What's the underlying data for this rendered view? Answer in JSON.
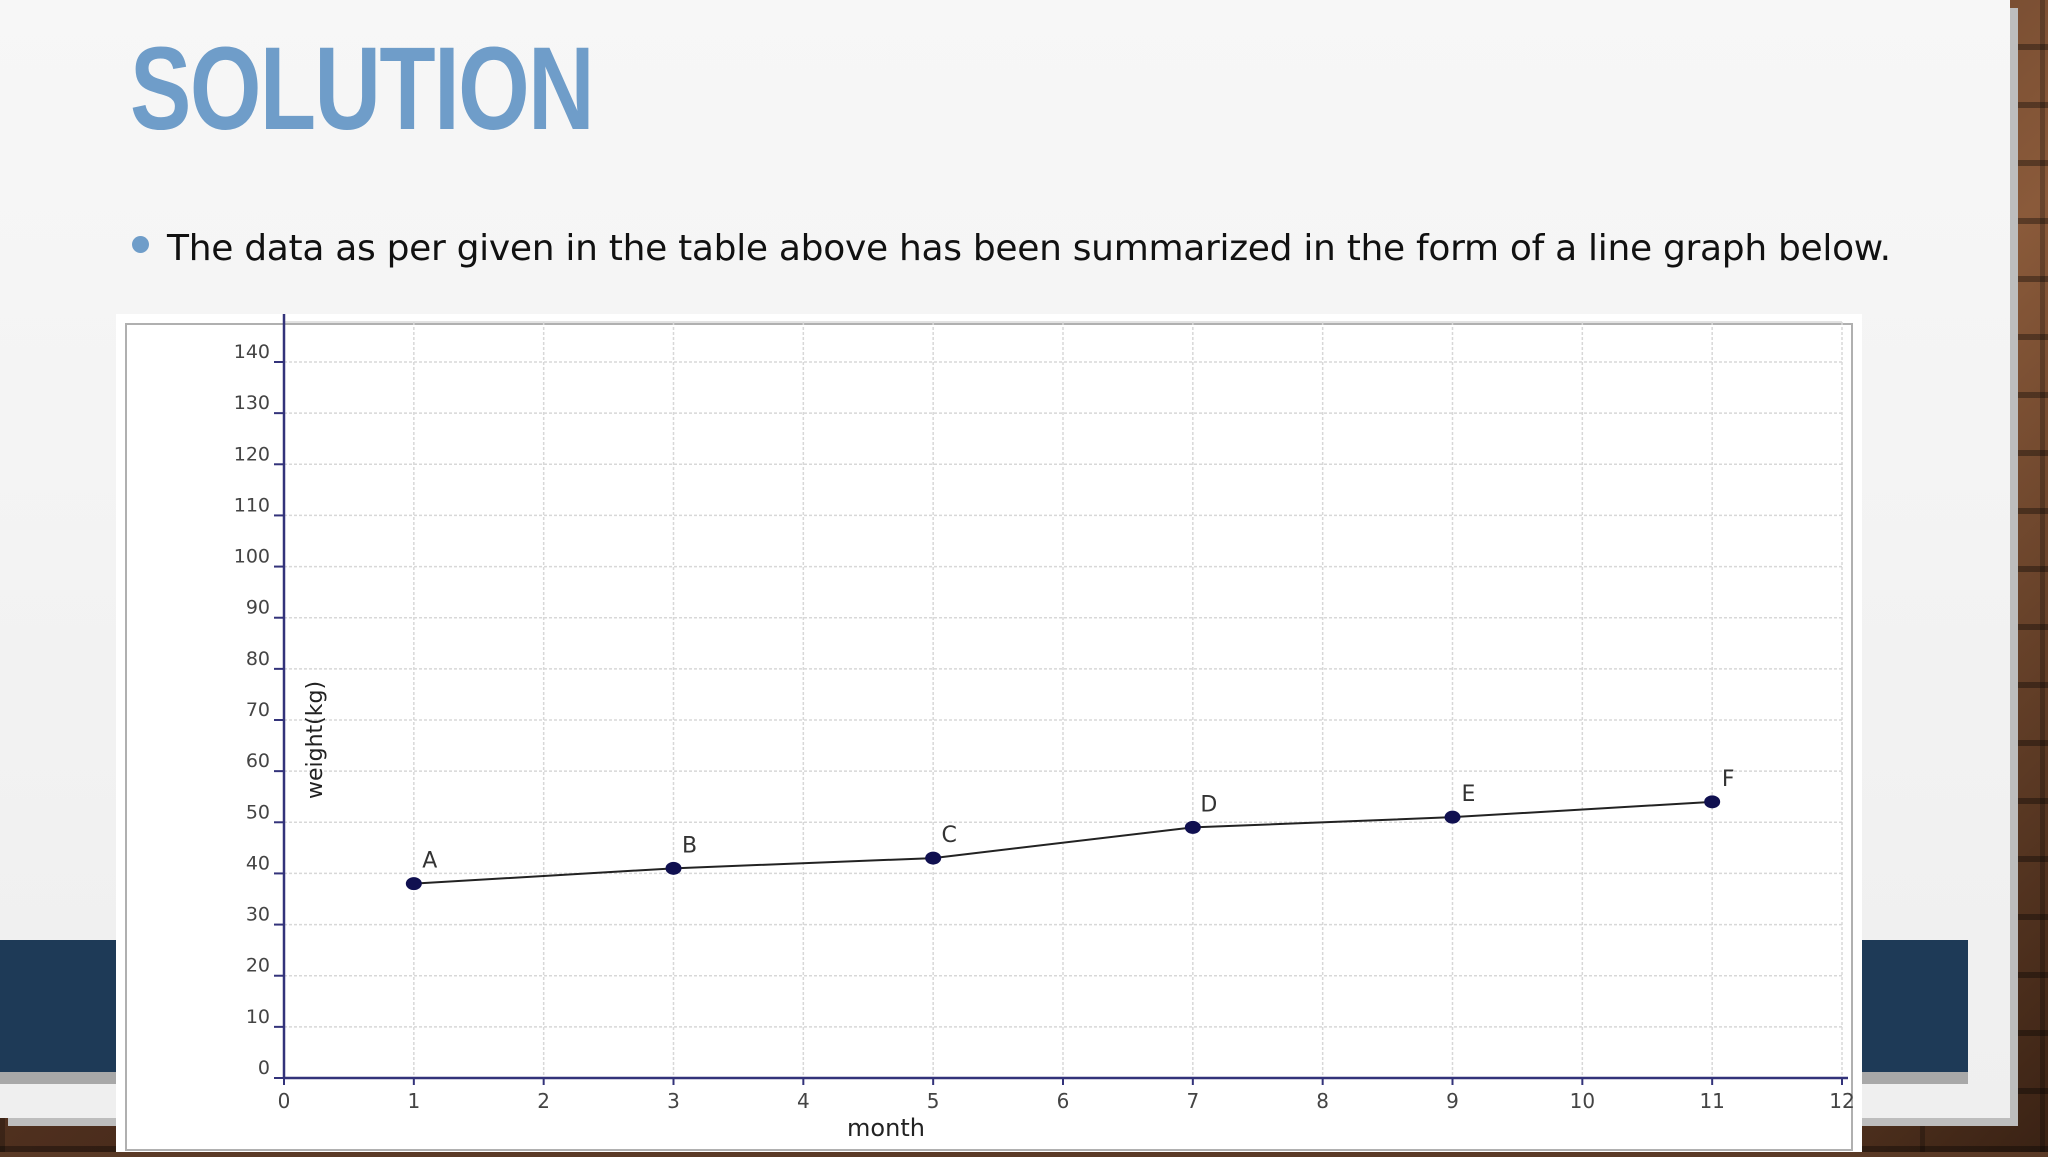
{
  "slide": {
    "title": "SOLUTION",
    "bullet": "The data as per given in the table above has been summarized in the form of a line graph below.",
    "colors": {
      "accent": "#6f9dc9",
      "band": "#1e3a57",
      "series": "#101050"
    }
  },
  "chart_data": {
    "type": "line",
    "title": "",
    "xlabel": "month",
    "ylabel": "weight(kg)",
    "xlim": [
      0,
      12
    ],
    "ylim": [
      0,
      140
    ],
    "x_ticks": [
      0,
      1,
      2,
      3,
      4,
      5,
      6,
      7,
      8,
      9,
      10,
      11,
      12
    ],
    "y_ticks": [
      0,
      10,
      20,
      30,
      40,
      50,
      60,
      70,
      80,
      90,
      100,
      110,
      120,
      130,
      140
    ],
    "grid": true,
    "series": [
      {
        "points": [
          {
            "label": "A",
            "x": 1,
            "y": 38
          },
          {
            "label": "B",
            "x": 3,
            "y": 41
          },
          {
            "label": "C",
            "x": 5,
            "y": 43
          },
          {
            "label": "D",
            "x": 7,
            "y": 49
          },
          {
            "label": "E",
            "x": 9,
            "y": 51
          },
          {
            "label": "F",
            "x": 11,
            "y": 54
          }
        ]
      }
    ]
  }
}
